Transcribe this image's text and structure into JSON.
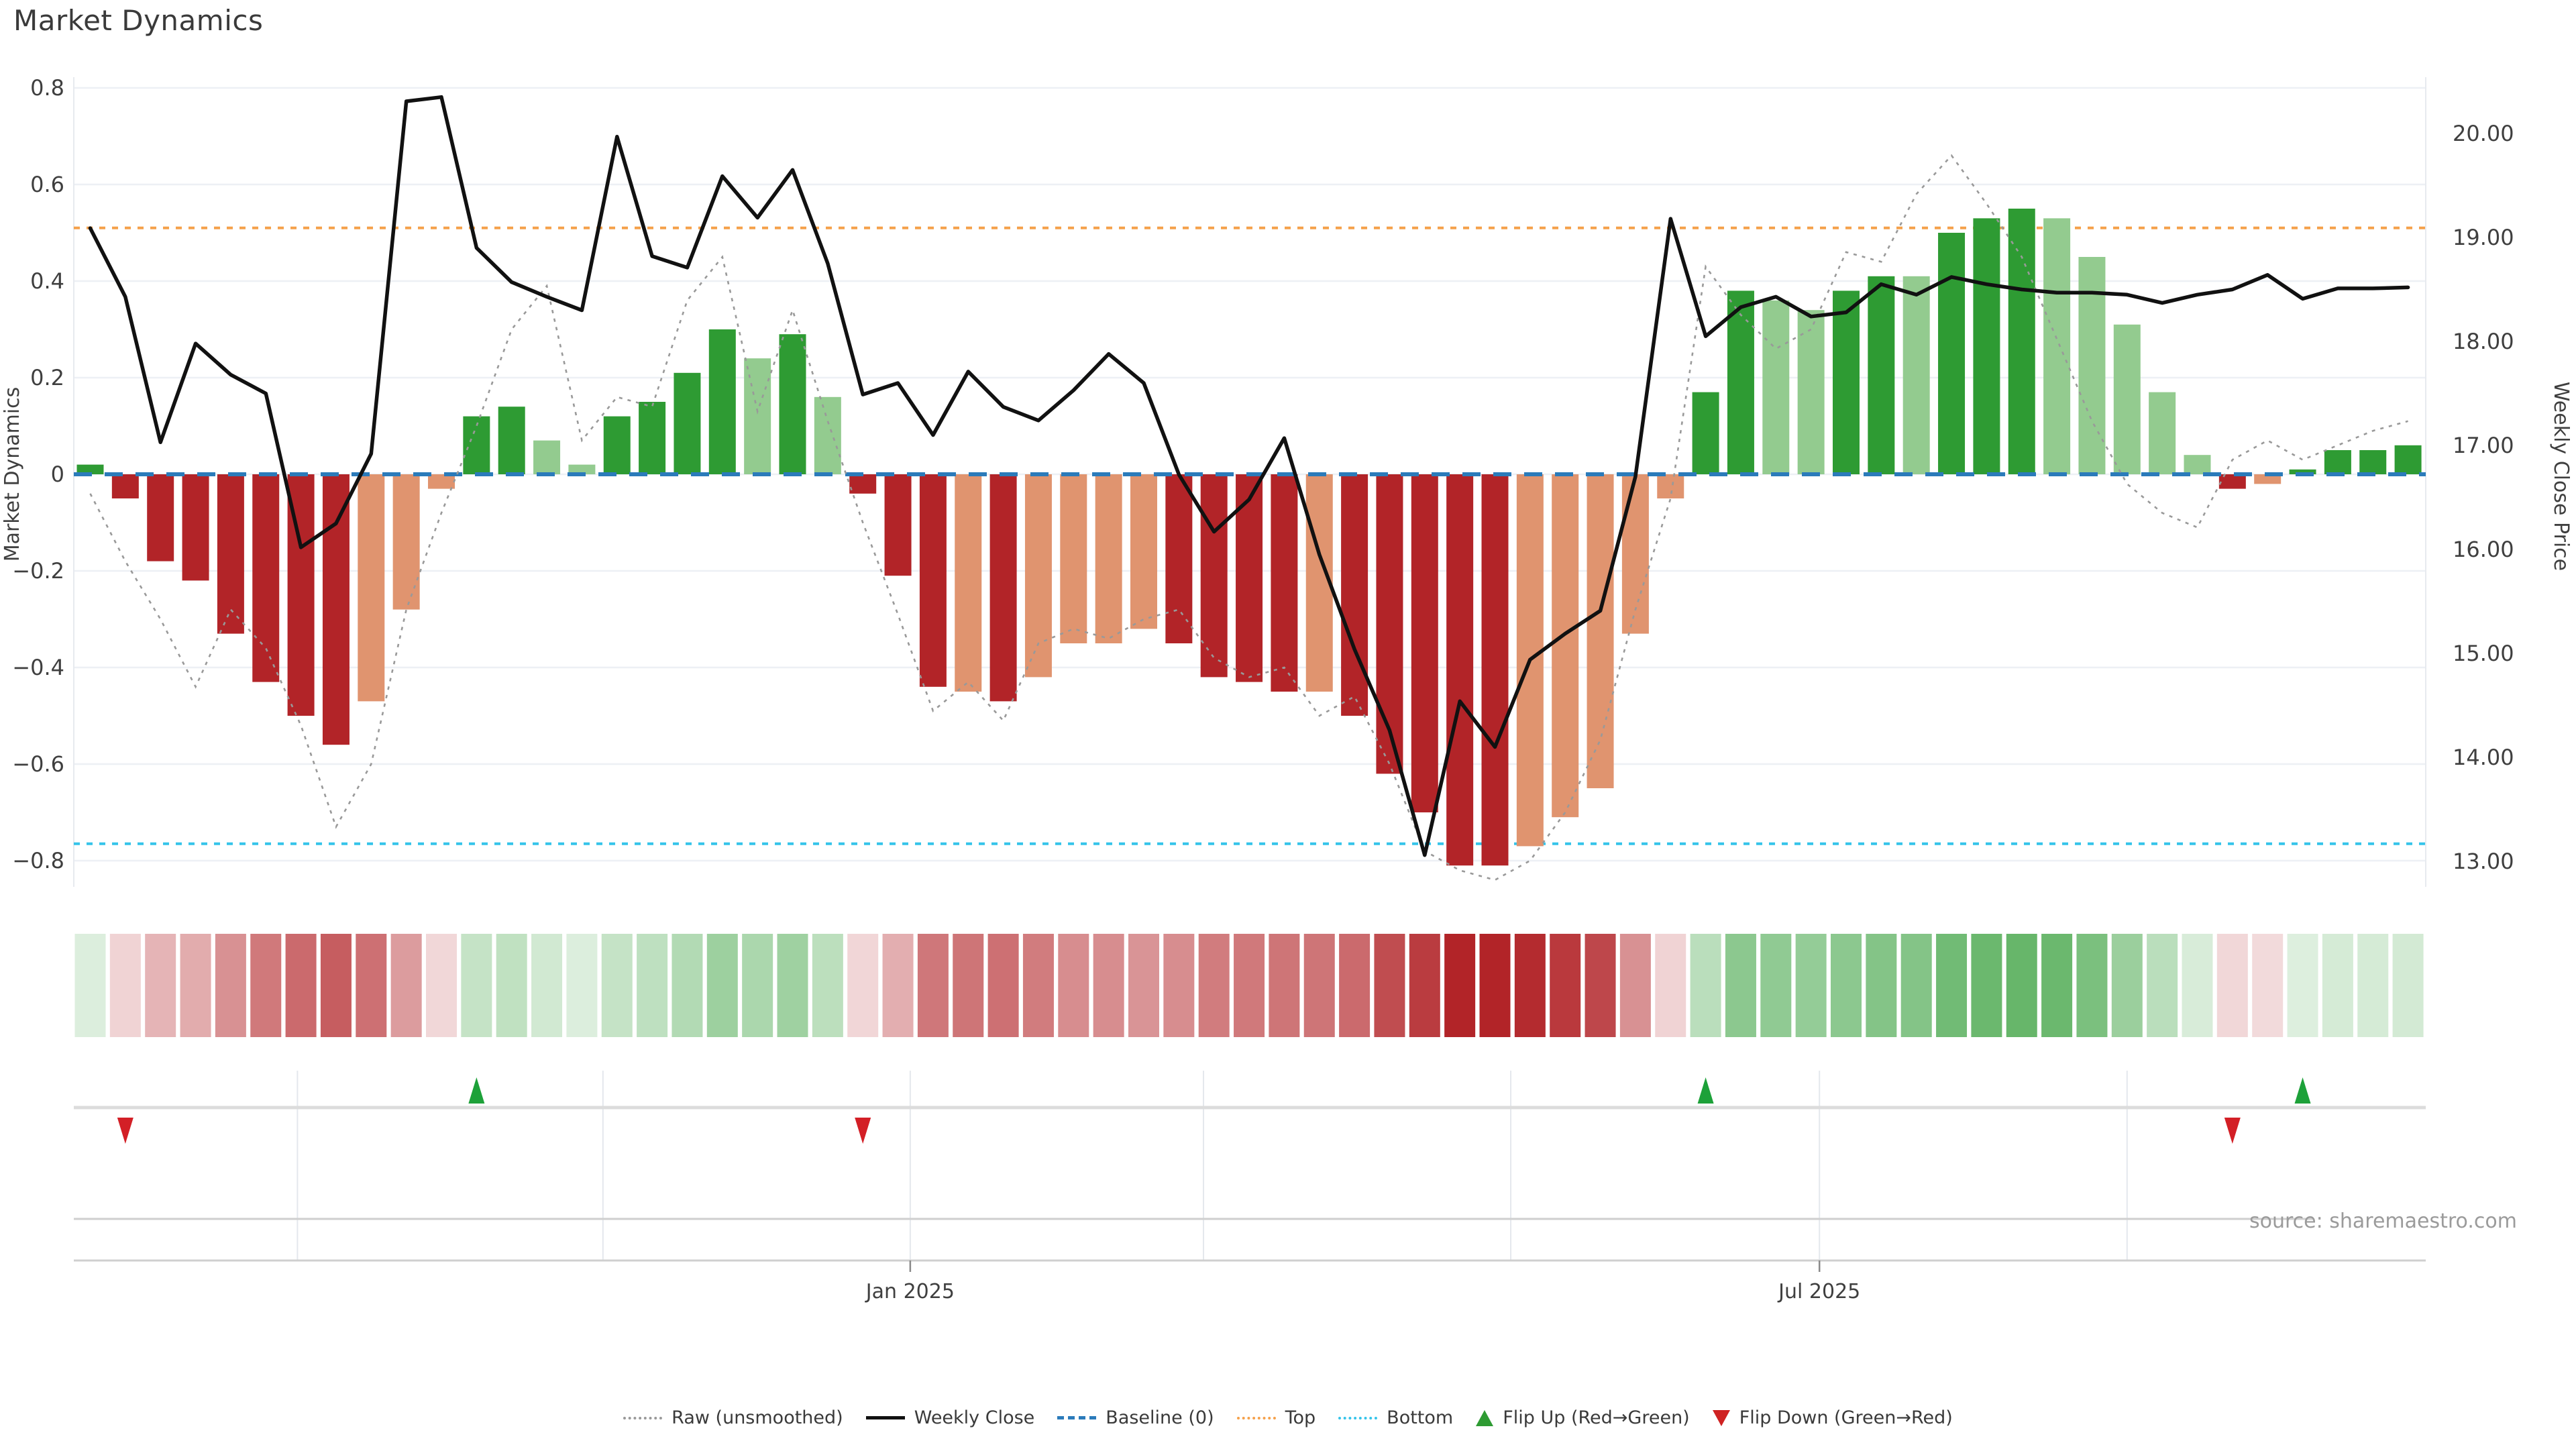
{
  "title": "Market Dynamics",
  "source_note": "source: sharemaestro.com",
  "axes": {
    "left": {
      "title": "Market Dynamics",
      "ticks": [
        "0.8",
        "0.6",
        "0.4",
        "0.2",
        "0",
        "−0.2",
        "−0.4",
        "−0.6",
        "−0.8"
      ],
      "tick_values": [
        0.8,
        0.6,
        0.4,
        0.2,
        0,
        -0.2,
        -0.4,
        -0.6,
        -0.8
      ]
    },
    "right": {
      "title": "Weekly Close Price",
      "ticks": [
        "20.00",
        "19.00",
        "18.00",
        "17.00",
        "16.00",
        "15.00",
        "14.00",
        "13.00"
      ],
      "tick_values": [
        20,
        19,
        18,
        17,
        16,
        15,
        14,
        13
      ]
    },
    "x": {
      "tick_labels": [
        "Jan 2025",
        "Jul 2025"
      ],
      "tick_idx": [
        23.35,
        49.24
      ],
      "month_gridline_idx": [
        5.9,
        14.6,
        23.35,
        31.7,
        40.45,
        49.24,
        58.0
      ]
    }
  },
  "legend": [
    {
      "label": "Raw (unsmoothed)",
      "swatch": "dot-gray"
    },
    {
      "label": "Weekly Close",
      "swatch": "solid-black"
    },
    {
      "label": "Baseline (0)",
      "swatch": "dash-blue"
    },
    {
      "label": "Top",
      "swatch": "dot-orange"
    },
    {
      "label": "Bottom",
      "swatch": "dot-cyan"
    },
    {
      "label": "Flip Up (Red→Green)",
      "swatch": "tri-up"
    },
    {
      "label": "Flip Down (Green→Red)",
      "swatch": "tri-down"
    }
  ],
  "colors": {
    "dark_green": "#2e9b33",
    "light_green": "#93cb8f",
    "dark_red": "#b22428",
    "light_red": "#e0946f",
    "baseline_blue": "#2b7bba",
    "top_orange": "#f5a14b",
    "bottom_cyan": "#35c4ea",
    "raw_gray": "#999999",
    "close_black": "#111111",
    "grid": "#edf0f5",
    "month_grid": "#e4e8ed",
    "spine": "#e7eaef",
    "separator": "#dcdcdc",
    "axis_line": "#cfcfcf",
    "tick_text": "#3f3f3f",
    "source_text": "#9b9b9b",
    "marker_up": "#1da139",
    "marker_down": "#d31f26"
  },
  "chart_data": {
    "type": "bar",
    "x_unit": "week",
    "n": 67,
    "title": "Market Dynamics",
    "ylabel_left": "Market Dynamics",
    "ylabel_right": "Weekly Close Price",
    "left_ylim": [
      -0.9,
      0.9
    ],
    "right_ylim": [
      12.6,
      20.6
    ],
    "baseline": 0,
    "top_line": 0.51,
    "bottom_line": -0.765,
    "bars": [
      0.02,
      -0.05,
      -0.18,
      -0.22,
      -0.33,
      -0.43,
      -0.5,
      -0.56,
      -0.47,
      -0.28,
      -0.03,
      0.12,
      0.14,
      0.07,
      0.02,
      0.12,
      0.15,
      0.21,
      0.3,
      0.24,
      0.29,
      0.16,
      -0.04,
      -0.21,
      -0.44,
      -0.45,
      -0.47,
      -0.42,
      -0.35,
      -0.35,
      -0.32,
      -0.35,
      -0.42,
      -0.43,
      -0.45,
      -0.45,
      -0.5,
      -0.62,
      -0.7,
      -0.81,
      -0.81,
      -0.77,
      -0.71,
      -0.65,
      -0.33,
      -0.05,
      0.17,
      0.38,
      0.36,
      0.34,
      0.38,
      0.41,
      0.41,
      0.5,
      0.53,
      0.55,
      0.53,
      0.45,
      0.31,
      0.17,
      0.04,
      -0.03,
      -0.02,
      0.01,
      0.05,
      0.05,
      0.06
    ],
    "bar_shade": "DDDDDDDDLLLDDLLDDDDLDLDDDLDLLLLDDDDLDDDDDLLLLLDDLLDDLDDDLLLLLDLDDDD",
    "weekly_close": [
      19.09,
      18.43,
      17.03,
      17.98,
      17.68,
      17.5,
      16.02,
      16.25,
      16.92,
      20.31,
      20.35,
      18.9,
      18.57,
      18.43,
      18.3,
      19.97,
      18.82,
      18.71,
      19.59,
      19.19,
      19.65,
      18.75,
      17.49,
      17.6,
      17.1,
      17.71,
      17.37,
      17.24,
      17.53,
      17.88,
      17.6,
      16.72,
      16.17,
      16.48,
      17.07,
      15.95,
      15.04,
      14.26,
      13.06,
      14.54,
      14.1,
      14.94,
      15.19,
      15.41,
      16.7,
      19.18,
      18.05,
      18.33,
      18.43,
      18.24,
      18.28,
      18.55,
      18.45,
      18.62,
      18.55,
      18.5,
      18.47,
      18.47,
      18.45,
      18.37,
      18.45,
      18.5,
      18.64,
      18.41,
      18.51,
      18.51,
      18.52
    ],
    "raw": [
      -0.04,
      -0.18,
      -0.3,
      -0.44,
      -0.28,
      -0.36,
      -0.52,
      -0.73,
      -0.6,
      -0.28,
      -0.08,
      0.1,
      0.3,
      0.39,
      0.07,
      0.16,
      0.14,
      0.36,
      0.45,
      0.13,
      0.34,
      0.11,
      -0.1,
      -0.29,
      -0.49,
      -0.43,
      -0.51,
      -0.35,
      -0.32,
      -0.34,
      -0.3,
      -0.28,
      -0.38,
      -0.42,
      -0.4,
      -0.5,
      -0.46,
      -0.6,
      -0.78,
      -0.82,
      -0.84,
      -0.8,
      -0.7,
      -0.55,
      -0.28,
      -0.05,
      0.43,
      0.33,
      0.26,
      0.3,
      0.46,
      0.44,
      0.58,
      0.66,
      0.56,
      0.45,
      0.28,
      0.11,
      -0.02,
      -0.08,
      -0.11,
      0.03,
      0.07,
      0.03,
      0.06,
      0.09,
      0.11
    ],
    "flip_up_idx": [
      11,
      46,
      63
    ],
    "flip_down_idx": [
      1,
      22,
      61
    ],
    "heatmap": {
      "alpha_min": 0.15,
      "alpha_scale_abs": 0.8
    }
  }
}
